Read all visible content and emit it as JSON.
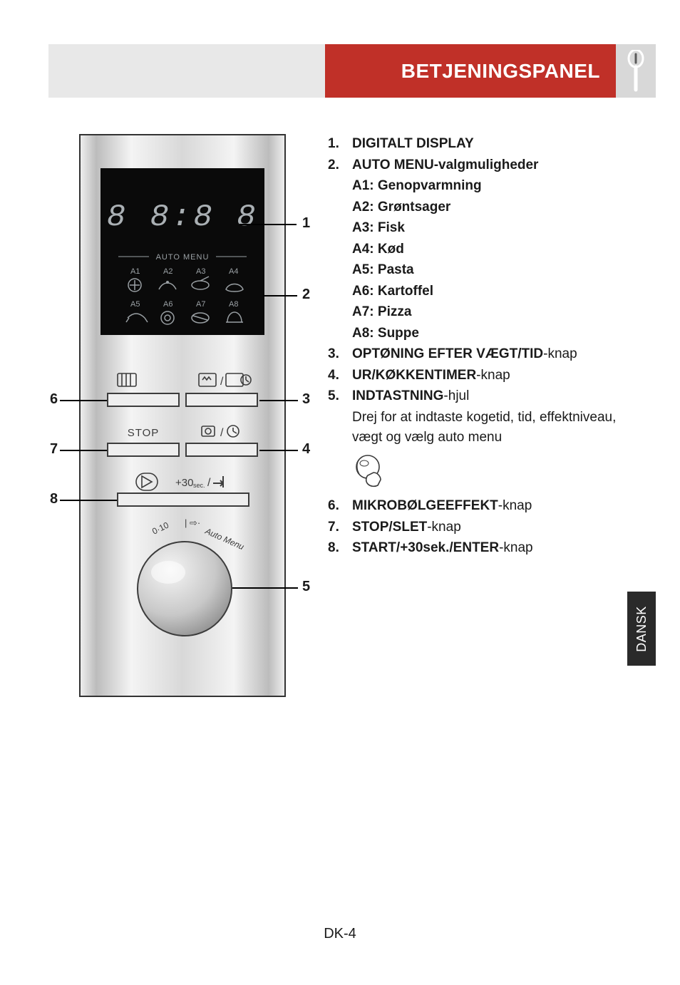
{
  "header": {
    "title": "BETJENINGSPANEL"
  },
  "colors": {
    "header_red": "#c03028",
    "header_grey": "#e8e8e8",
    "spoon_bg": "#d8d8d8",
    "text": "#1a1a1a",
    "side_tab_bg": "#2a2a2a"
  },
  "panel": {
    "display_text": "8 8:8 8",
    "auto_menu_label": "AUTO MENU",
    "auto_codes": [
      "A1",
      "A2",
      "A3",
      "A4",
      "A5",
      "A6",
      "A7",
      "A8"
    ],
    "buttons": {
      "stop": "STOP",
      "start": "+30",
      "start_unit": "sec."
    },
    "dial_label_left": "0·10",
    "dial_label_right": "Auto Menu"
  },
  "callouts": {
    "1": "1",
    "2": "2",
    "3": "3",
    "4": "4",
    "5": "5",
    "6": "6",
    "7": "7",
    "8": "8"
  },
  "legend": {
    "items": [
      {
        "num": "1.",
        "bold": "DIGITALT DISPLAY",
        "rest": ""
      },
      {
        "num": "2.",
        "bold": "AUTO MENU-valgmuligheder",
        "rest": ""
      },
      {
        "num": "",
        "bold": "A1: Genopvarmning",
        "rest": ""
      },
      {
        "num": "",
        "bold": "A2: Grøntsager",
        "rest": ""
      },
      {
        "num": "",
        "bold": "A3: Fisk",
        "rest": ""
      },
      {
        "num": "",
        "bold": "A4: Kød",
        "rest": ""
      },
      {
        "num": "",
        "bold": "A5: Pasta",
        "rest": ""
      },
      {
        "num": "",
        "bold": "A6: Kartoffel",
        "rest": ""
      },
      {
        "num": "",
        "bold": "A7: Pizza",
        "rest": ""
      },
      {
        "num": "",
        "bold": "A8: Suppe",
        "rest": ""
      },
      {
        "num": "3.",
        "bold": "OPTØNING EFTER VÆGT/TID",
        "rest": "-knap"
      },
      {
        "num": "4.",
        "bold": "UR/KØKKENTIMER",
        "rest": "-knap"
      },
      {
        "num": "5.",
        "bold": "INDTASTNING",
        "rest": "-hjul"
      }
    ],
    "item5_desc": "Drej for at indtaste kogetid, tid, effektniveau, vægt og vælg auto menu",
    "trailing": [
      {
        "num": "6.",
        "bold": "MIKROBØLGEEFFEKT",
        "rest": "-knap"
      },
      {
        "num": "7.",
        "bold": "STOP/SLET",
        "rest": "-knap"
      },
      {
        "num": "8.",
        "bold": "START/+30sek./ENTER",
        "rest": "-knap"
      }
    ]
  },
  "side_tab": "DANSK",
  "footer": "DK-4"
}
